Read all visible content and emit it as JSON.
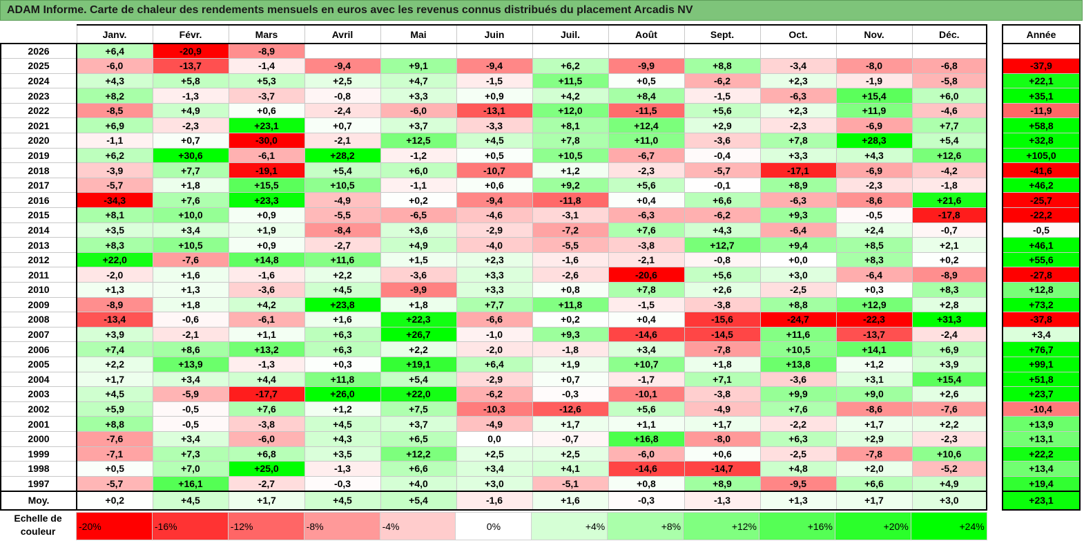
{
  "title": "ADAM Informe. Carte de chaleur des rendements mensuels en euros avec les revenus connus distribués du placement Arcadis NV",
  "chart_data": {
    "type": "heatmap",
    "title": "ADAM Informe. Carte de chaleur des rendements mensuels en euros avec les revenus connus distribués du placement Arcadis NV",
    "months": [
      "Janv.",
      "Févr.",
      "Mars",
      "Avril",
      "Mai",
      "Juin",
      "Juil.",
      "Août",
      "Sept.",
      "Oct.",
      "Nov.",
      "Déc."
    ],
    "year_column_label": "Année",
    "average_label": "Moy.",
    "rows": [
      {
        "year": "2026",
        "values": [
          "+6,4",
          "-20,9",
          "-8,9",
          "",
          "",
          "",
          "",
          "",
          "",
          "",
          "",
          ""
        ],
        "annual": ""
      },
      {
        "year": "2025",
        "values": [
          "-6,0",
          "-13,7",
          "-1,4",
          "-9,4",
          "+9,1",
          "-9,4",
          "+6,2",
          "-9,9",
          "+8,8",
          "-3,4",
          "-8,0",
          "-6,8"
        ],
        "annual": "-37,9"
      },
      {
        "year": "2024",
        "values": [
          "+4,3",
          "+5,8",
          "+5,3",
          "+2,5",
          "+4,7",
          "-1,5",
          "+11,5",
          "+0,5",
          "-6,2",
          "+2,3",
          "-1,9",
          "-5,8"
        ],
        "annual": "+22,1"
      },
      {
        "year": "2023",
        "values": [
          "+8,2",
          "-1,3",
          "-3,7",
          "-0,8",
          "+3,3",
          "+0,9",
          "+4,2",
          "+8,4",
          "-1,5",
          "-6,3",
          "+15,4",
          "+6,0"
        ],
        "annual": "+35,1"
      },
      {
        "year": "2022",
        "values": [
          "-8,5",
          "+4,9",
          "+0,6",
          "-2,4",
          "-6,0",
          "-13,1",
          "+12,0",
          "-11,5",
          "+5,6",
          "+2,3",
          "+11,9",
          "-4,6"
        ],
        "annual": "-11,9"
      },
      {
        "year": "2021",
        "values": [
          "+6,9",
          "-2,3",
          "+23,1",
          "+0,7",
          "+3,7",
          "-3,3",
          "+8,1",
          "+12,4",
          "+2,9",
          "-2,3",
          "-6,9",
          "+7,7"
        ],
        "annual": "+58,8"
      },
      {
        "year": "2020",
        "values": [
          "-1,1",
          "+0,7",
          "-30,0",
          "-2,1",
          "+12,5",
          "+4,5",
          "+7,8",
          "+11,0",
          "-3,6",
          "+7,8",
          "+28,3",
          "+5,4"
        ],
        "annual": "+32,8"
      },
      {
        "year": "2019",
        "values": [
          "+6,2",
          "+30,6",
          "-6,1",
          "+28,2",
          "-1,2",
          "+0,5",
          "+10,5",
          "-6,7",
          "-0,4",
          "+3,3",
          "+4,3",
          "+12,6"
        ],
        "annual": "+105,0"
      },
      {
        "year": "2018",
        "values": [
          "-3,9",
          "+7,7",
          "-19,1",
          "+5,4",
          "+6,0",
          "-10,7",
          "+1,2",
          "-2,3",
          "-5,7",
          "-17,1",
          "-6,9",
          "-4,2"
        ],
        "annual": "-41,6"
      },
      {
        "year": "2017",
        "values": [
          "-5,7",
          "+1,8",
          "+15,5",
          "+10,5",
          "-1,1",
          "+0,6",
          "+9,2",
          "+5,6",
          "-0,1",
          "+8,9",
          "-2,3",
          "-1,8"
        ],
        "annual": "+46,2"
      },
      {
        "year": "2016",
        "values": [
          "-34,3",
          "+7,6",
          "+23,3",
          "-4,9",
          "+0,2",
          "-9,4",
          "-11,8",
          "+0,4",
          "+6,6",
          "-6,3",
          "-8,6",
          "+21,6"
        ],
        "annual": "-25,7"
      },
      {
        "year": "2015",
        "values": [
          "+8,1",
          "+10,0",
          "+0,9",
          "-5,5",
          "-6,5",
          "-4,6",
          "-3,1",
          "-6,3",
          "-6,2",
          "+9,3",
          "-0,5",
          "-17,8"
        ],
        "annual": "-22,2"
      },
      {
        "year": "2014",
        "values": [
          "+3,5",
          "+3,4",
          "+1,9",
          "-8,4",
          "+3,6",
          "-2,9",
          "-7,2",
          "+7,6",
          "+4,3",
          "-6,4",
          "+2,4",
          "-0,7"
        ],
        "annual": "-0,5"
      },
      {
        "year": "2013",
        "values": [
          "+8,3",
          "+10,5",
          "+0,9",
          "-2,7",
          "+4,9",
          "-4,0",
          "-5,5",
          "-3,8",
          "+12,7",
          "+9,4",
          "+8,5",
          "+2,1"
        ],
        "annual": "+46,1"
      },
      {
        "year": "2012",
        "values": [
          "+22,0",
          "-7,6",
          "+14,8",
          "+11,6",
          "+1,5",
          "+2,3",
          "-1,6",
          "-2,1",
          "-0,8",
          "+0,0",
          "+8,3",
          "+0,2"
        ],
        "annual": "+55,6"
      },
      {
        "year": "2011",
        "values": [
          "-2,0",
          "+1,6",
          "-1,6",
          "+2,2",
          "-3,6",
          "+3,3",
          "-2,6",
          "-20,6",
          "+5,6",
          "+3,0",
          "-6,4",
          "-8,9"
        ],
        "annual": "-27,8"
      },
      {
        "year": "2010",
        "values": [
          "+1,3",
          "+1,3",
          "-3,6",
          "+4,5",
          "-9,9",
          "+3,3",
          "+0,8",
          "+7,8",
          "+2,6",
          "-2,5",
          "+0,3",
          "+8,3"
        ],
        "annual": "+12,8"
      },
      {
        "year": "2009",
        "values": [
          "-8,9",
          "+1,8",
          "+4,2",
          "+23,8",
          "+1,8",
          "+7,7",
          "+11,8",
          "-1,5",
          "-3,8",
          "+8,8",
          "+12,9",
          "+2,8"
        ],
        "annual": "+73,2"
      },
      {
        "year": "2008",
        "values": [
          "-13,4",
          "-0,6",
          "-6,1",
          "+1,6",
          "+22,3",
          "-6,6",
          "+0,2",
          "+0,4",
          "-15,6",
          "-24,7",
          "-22,3",
          "+31,3"
        ],
        "annual": "-37,8"
      },
      {
        "year": "2007",
        "values": [
          "+3,9",
          "-2,1",
          "+1,1",
          "+6,3",
          "+26,7",
          "-1,0",
          "+9,3",
          "-14,6",
          "-14,5",
          "+11,6",
          "-13,7",
          "-2,4"
        ],
        "annual": "+3,4"
      },
      {
        "year": "2006",
        "values": [
          "+7,4",
          "+8,6",
          "+13,2",
          "+6,3",
          "+2,2",
          "-2,0",
          "-1,8",
          "+3,4",
          "-7,8",
          "+10,5",
          "+14,1",
          "+6,9"
        ],
        "annual": "+76,7"
      },
      {
        "year": "2005",
        "values": [
          "+2,2",
          "+13,9",
          "-1,3",
          "+0,3",
          "+19,1",
          "+6,4",
          "+1,9",
          "+10,7",
          "+1,8",
          "+13,8",
          "+1,2",
          "+3,9"
        ],
        "annual": "+99,1"
      },
      {
        "year": "2004",
        "values": [
          "+1,7",
          "+3,4",
          "+4,4",
          "+11,8",
          "+5,4",
          "-2,9",
          "+0,7",
          "-1,7",
          "+7,1",
          "-3,6",
          "+3,1",
          "+15,4"
        ],
        "annual": "+51,8"
      },
      {
        "year": "2003",
        "values": [
          "+4,5",
          "-5,9",
          "-17,7",
          "+26,0",
          "+22,0",
          "-6,2",
          "-0,3",
          "-10,1",
          "-3,8",
          "+9,9",
          "+9,0",
          "+2,6"
        ],
        "annual": "+23,7"
      },
      {
        "year": "2002",
        "values": [
          "+5,9",
          "-0,5",
          "+7,6",
          "+1,2",
          "+7,5",
          "-10,3",
          "-12,6",
          "+5,6",
          "-4,9",
          "+7,6",
          "-8,6",
          "-7,6"
        ],
        "annual": "-10,4"
      },
      {
        "year": "2001",
        "values": [
          "+8,8",
          "-0,5",
          "-3,8",
          "+4,5",
          "+3,7",
          "-4,9",
          "+1,7",
          "+1,1",
          "+1,7",
          "-2,2",
          "+1,7",
          "+2,2"
        ],
        "annual": "+13,9"
      },
      {
        "year": "2000",
        "values": [
          "-7,6",
          "+3,4",
          "-6,0",
          "+4,3",
          "+6,5",
          "0,0",
          "-0,7",
          "+16,8",
          "-8,0",
          "+6,3",
          "+2,9",
          "-2,3"
        ],
        "annual": "+13,1"
      },
      {
        "year": "1999",
        "values": [
          "-7,1",
          "+7,3",
          "+6,8",
          "+3,5",
          "+12,2",
          "+2,5",
          "+2,5",
          "-6,0",
          "+0,6",
          "-2,5",
          "-7,8",
          "+10,6"
        ],
        "annual": "+22,2"
      },
      {
        "year": "1998",
        "values": [
          "+0,5",
          "+7,0",
          "+25,0",
          "-1,3",
          "+6,6",
          "+3,4",
          "+4,1",
          "-14,6",
          "-14,7",
          "+4,8",
          "+2,0",
          "-5,2"
        ],
        "annual": "+13,4"
      },
      {
        "year": "1997",
        "values": [
          "-5,7",
          "+16,1",
          "-2,7",
          "-0,3",
          "+4,0",
          "+3,0",
          "-5,1",
          "+0,8",
          "+8,9",
          "-9,5",
          "+6,6",
          "+4,9"
        ],
        "annual": "+19,4"
      }
    ],
    "average": {
      "values": [
        "+0,2",
        "+4,5",
        "+1,7",
        "+4,5",
        "+5,4",
        "-1,6",
        "+1,6",
        "-0,3",
        "-1,3",
        "+1,3",
        "+1,7",
        "+3,0"
      ],
      "annual": "+23,1"
    },
    "color_scale": {
      "label": "Echelle de couleur",
      "stops": [
        "-20%",
        "-16%",
        "-12%",
        "-8%",
        "-4%",
        "0%",
        "+4%",
        "+8%",
        "+12%",
        "+16%",
        "+20%",
        "+24%"
      ],
      "stop_values": [
        -20,
        -16,
        -12,
        -8,
        -4,
        0,
        4,
        8,
        12,
        16,
        20,
        24
      ],
      "neg_color": "#ff0000",
      "pos_color": "#00ff00",
      "neutral_color": "#ffffff"
    }
  }
}
